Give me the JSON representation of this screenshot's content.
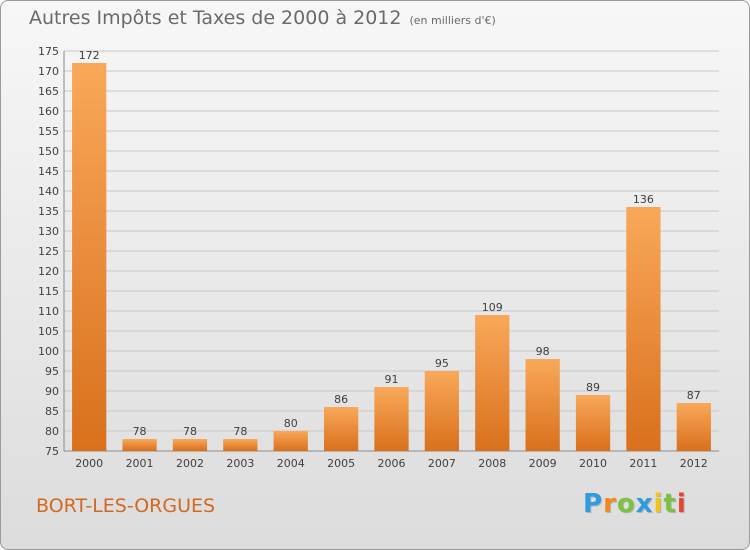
{
  "title": "Autres Impôts et Taxes de 2000 à 2012",
  "unit": "(en milliers d'€)",
  "commune": "BORT-LES-ORGUES",
  "logo": {
    "letters": [
      "P",
      "r",
      "o",
      "x",
      "i",
      "t",
      "i"
    ],
    "colors": [
      "#2f9be0",
      "#f08a1c",
      "#7cc242",
      "#2f9be0",
      "#f0c419",
      "#7cc242",
      "#e8432e"
    ]
  },
  "colors": {
    "bar_light": "#f9a85a",
    "bar_dark": "#d9701c",
    "grid": "#c8c8c8"
  },
  "chart_data": {
    "type": "bar",
    "categories": [
      "2000",
      "2001",
      "2002",
      "2003",
      "2004",
      "2005",
      "2006",
      "2007",
      "2008",
      "2009",
      "2010",
      "2011",
      "2012"
    ],
    "values": [
      172,
      78,
      78,
      78,
      80,
      86,
      91,
      95,
      109,
      98,
      89,
      136,
      87
    ],
    "ylim": [
      75,
      175
    ],
    "yticks": [
      75,
      80,
      85,
      90,
      95,
      100,
      105,
      110,
      115,
      120,
      125,
      130,
      135,
      140,
      145,
      150,
      155,
      160,
      165,
      170,
      175
    ],
    "grid": true,
    "data_labels": true
  }
}
